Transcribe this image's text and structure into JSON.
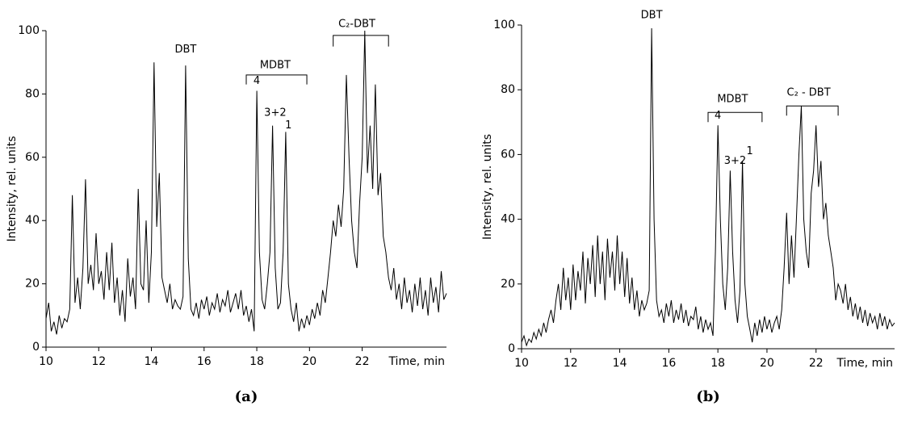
{
  "chart_data": [
    {
      "type": "line",
      "panel_label": "(a)",
      "x_label": "Time, min",
      "y_label": "Intensity, rel. units",
      "color": "#000000",
      "annotations": [
        "DBT",
        "MDBT",
        "4",
        "3+2",
        "1",
        "C₂-DBT"
      ],
      "xlim": [
        10,
        25.2
      ],
      "ylim": [
        0,
        100
      ],
      "xticks": [
        10,
        12,
        14,
        16,
        18,
        20,
        22
      ],
      "yticks": [
        0,
        20,
        40,
        60,
        80,
        100
      ],
      "x": [
        10.0,
        10.1,
        10.2,
        10.3,
        10.4,
        10.5,
        10.6,
        10.7,
        10.8,
        10.9,
        11.0,
        11.1,
        11.2,
        11.3,
        11.4,
        11.5,
        11.6,
        11.7,
        11.8,
        11.9,
        12.0,
        12.1,
        12.2,
        12.3,
        12.4,
        12.5,
        12.6,
        12.7,
        12.8,
        12.9,
        13.0,
        13.1,
        13.2,
        13.3,
        13.4,
        13.5,
        13.6,
        13.7,
        13.8,
        13.9,
        14.0,
        14.1,
        14.2,
        14.3,
        14.4,
        14.5,
        14.6,
        14.7,
        14.8,
        14.9,
        15.0,
        15.1,
        15.2,
        15.3,
        15.4,
        15.5,
        15.6,
        15.7,
        15.8,
        15.9,
        16.0,
        16.1,
        16.2,
        16.3,
        16.4,
        16.5,
        16.6,
        16.7,
        16.8,
        16.9,
        17.0,
        17.1,
        17.2,
        17.3,
        17.4,
        17.5,
        17.6,
        17.7,
        17.8,
        17.9,
        18.0,
        18.1,
        18.2,
        18.3,
        18.4,
        18.5,
        18.6,
        18.7,
        18.8,
        18.9,
        19.0,
        19.1,
        19.2,
        19.3,
        19.4,
        19.5,
        19.6,
        19.7,
        19.8,
        19.9,
        20.0,
        20.1,
        20.2,
        20.3,
        20.4,
        20.5,
        20.6,
        20.7,
        20.8,
        20.9,
        21.0,
        21.1,
        21.2,
        21.3,
        21.4,
        21.5,
        21.6,
        21.7,
        21.8,
        21.9,
        22.0,
        22.1,
        22.2,
        22.3,
        22.4,
        22.5,
        22.6,
        22.7,
        22.8,
        22.9,
        23.0,
        23.1,
        23.2,
        23.3,
        23.4,
        23.5,
        23.6,
        23.7,
        23.8,
        23.9,
        24.0,
        24.1,
        24.2,
        24.3,
        24.4,
        24.5,
        24.6,
        24.7,
        24.8,
        24.9,
        25.0,
        25.1,
        25.2
      ],
      "values": [
        9,
        14,
        5,
        8,
        4,
        10,
        6,
        9,
        8,
        12,
        48,
        14,
        22,
        12,
        25,
        53,
        20,
        26,
        18,
        36,
        20,
        24,
        15,
        30,
        18,
        33,
        14,
        22,
        10,
        18,
        8,
        28,
        16,
        22,
        12,
        50,
        20,
        18,
        40,
        14,
        30,
        90,
        38,
        55,
        22,
        18,
        14,
        20,
        12,
        15,
        13,
        12,
        16,
        89,
        28,
        12,
        10,
        14,
        9,
        15,
        12,
        16,
        10,
        14,
        12,
        17,
        11,
        15,
        13,
        18,
        11,
        14,
        17,
        12,
        18,
        10,
        13,
        8,
        12,
        5,
        81,
        30,
        15,
        12,
        20,
        30,
        70,
        25,
        12,
        14,
        30,
        68,
        20,
        12,
        8,
        14,
        5,
        9,
        6,
        10,
        7,
        12,
        9,
        14,
        10,
        18,
        14,
        22,
        30,
        40,
        35,
        45,
        38,
        50,
        86,
        60,
        40,
        30,
        25,
        45,
        60,
        100,
        55,
        70,
        50,
        83,
        48,
        55,
        35,
        30,
        22,
        18,
        25,
        15,
        20,
        12,
        22,
        14,
        18,
        11,
        20,
        13,
        22,
        12,
        18,
        10,
        22,
        14,
        19,
        11,
        24,
        15,
        17
      ]
    },
    {
      "type": "line",
      "panel_label": "(b)",
      "x_label": "Time, min",
      "y_label": "Intensity, rel. units",
      "color": "#000000",
      "annotations": [
        "DBT",
        "MDBT",
        "4",
        "3+2",
        "1",
        "C₂ - DBT"
      ],
      "xlim": [
        10,
        25.2
      ],
      "ylim": [
        0,
        100
      ],
      "xticks": [
        10,
        12,
        14,
        16,
        18,
        20,
        22
      ],
      "yticks": [
        0,
        20,
        40,
        60,
        80,
        100
      ],
      "x": [
        10.0,
        10.1,
        10.2,
        10.3,
        10.4,
        10.5,
        10.6,
        10.7,
        10.8,
        10.9,
        11.0,
        11.1,
        11.2,
        11.3,
        11.4,
        11.5,
        11.6,
        11.7,
        11.8,
        11.9,
        12.0,
        12.1,
        12.2,
        12.3,
        12.4,
        12.5,
        12.6,
        12.7,
        12.8,
        12.9,
        13.0,
        13.1,
        13.2,
        13.3,
        13.4,
        13.5,
        13.6,
        13.7,
        13.8,
        13.9,
        14.0,
        14.1,
        14.2,
        14.3,
        14.4,
        14.5,
        14.6,
        14.7,
        14.8,
        14.9,
        15.0,
        15.1,
        15.2,
        15.3,
        15.4,
        15.5,
        15.6,
        15.7,
        15.8,
        15.9,
        16.0,
        16.1,
        16.2,
        16.3,
        16.4,
        16.5,
        16.6,
        16.7,
        16.8,
        16.9,
        17.0,
        17.1,
        17.2,
        17.3,
        17.4,
        17.5,
        17.6,
        17.7,
        17.8,
        17.9,
        18.0,
        18.1,
        18.2,
        18.3,
        18.4,
        18.5,
        18.6,
        18.7,
        18.8,
        18.9,
        19.0,
        19.1,
        19.2,
        19.3,
        19.4,
        19.5,
        19.6,
        19.7,
        19.8,
        19.9,
        20.0,
        20.1,
        20.2,
        20.3,
        20.4,
        20.5,
        20.6,
        20.7,
        20.8,
        20.9,
        21.0,
        21.1,
        21.2,
        21.3,
        21.4,
        21.5,
        21.6,
        21.7,
        21.8,
        21.9,
        22.0,
        22.1,
        22.2,
        22.3,
        22.4,
        22.5,
        22.6,
        22.7,
        22.8,
        22.9,
        23.0,
        23.1,
        23.2,
        23.3,
        23.4,
        23.5,
        23.6,
        23.7,
        23.8,
        23.9,
        24.0,
        24.1,
        24.2,
        24.3,
        24.4,
        24.5,
        24.6,
        24.7,
        24.8,
        24.9,
        25.0,
        25.1,
        25.2
      ],
      "values": [
        2,
        4,
        1,
        3,
        2,
        5,
        3,
        6,
        4,
        8,
        5,
        9,
        12,
        8,
        15,
        20,
        12,
        25,
        15,
        22,
        12,
        26,
        15,
        24,
        18,
        30,
        14,
        28,
        20,
        32,
        16,
        35,
        20,
        30,
        15,
        34,
        22,
        30,
        18,
        35,
        20,
        30,
        16,
        28,
        14,
        22,
        12,
        18,
        10,
        15,
        12,
        14,
        18,
        99,
        40,
        15,
        10,
        12,
        8,
        14,
        10,
        15,
        8,
        12,
        9,
        14,
        8,
        12,
        7,
        10,
        9,
        13,
        6,
        10,
        5,
        9,
        6,
        8,
        4,
        30,
        69,
        40,
        20,
        12,
        25,
        55,
        30,
        15,
        8,
        18,
        58,
        20,
        10,
        6,
        2,
        8,
        4,
        9,
        5,
        10,
        6,
        9,
        5,
        8,
        10,
        6,
        12,
        25,
        42,
        20,
        35,
        22,
        40,
        60,
        75,
        40,
        30,
        25,
        48,
        55,
        69,
        50,
        58,
        40,
        45,
        35,
        30,
        25,
        15,
        20,
        18,
        14,
        20,
        12,
        16,
        10,
        14,
        9,
        13,
        8,
        12,
        7,
        11,
        8,
        10,
        6,
        11,
        7,
        10,
        6,
        9,
        7,
        8
      ]
    }
  ]
}
